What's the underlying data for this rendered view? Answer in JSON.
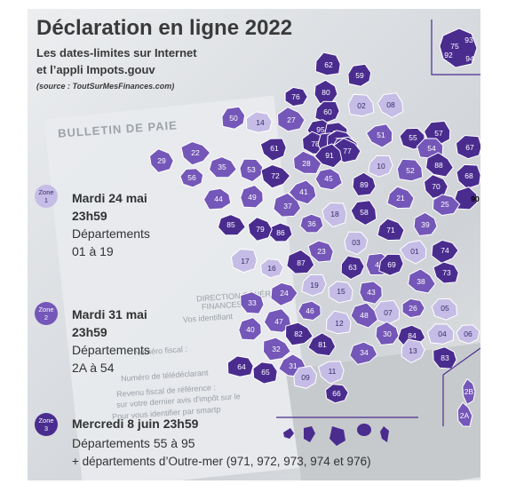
{
  "title": "Déclaration en ligne 2022",
  "subtitle_line1": "Les dates-limites sur Internet",
  "subtitle_line2": "et l’appli Impots.gouv",
  "source": "(source : ToutSurMesFinances.com)",
  "background_texts": {
    "bulletin": "BULLETIN DE PAIE",
    "direction": "DIRECTION GÉNÉRALE",
    "finances": "FINANCES",
    "vos_ident": "Vos identifiant",
    "num_fiscal": "Numéro fiscal :",
    "num_teledecl": "Numéro de télédéclarant",
    "revenu_ref": "Revenu fiscal de référence :",
    "dernier_avis": "sur votre dernier avis d'impôt sur le",
    "vous_identifier": "Pour vous identifier par smartp"
  },
  "colors": {
    "zone1": "#c6bde6",
    "zone2": "#7457b8",
    "zone3": "#4a2c8f",
    "border": "#ffffff"
  },
  "zones": [
    {
      "badge_word": "Zone",
      "badge_num": "1",
      "date": "Mardi 24 mai",
      "time": "23h59",
      "line1": "Départements",
      "line2": "01 à 19"
    },
    {
      "badge_word": "Zone",
      "badge_num": "2",
      "date": "Mardi 31 mai",
      "time": "23h59",
      "line1": "Départements",
      "line2": "2A à 54"
    },
    {
      "badge_word": "Zone",
      "badge_num": "3",
      "date": "Mercredi 8 juin 23h59",
      "line1": "Départements 55 à 95",
      "line2": "+ départements d’Outre-mer (971, 972, 973, 974 et 976)"
    }
  ],
  "departments": [
    {
      "code": "62",
      "zone": 3
    },
    {
      "code": "59",
      "zone": 3
    },
    {
      "code": "80",
      "zone": 3
    },
    {
      "code": "76",
      "zone": 3
    },
    {
      "code": "60",
      "zone": 3
    },
    {
      "code": "02",
      "zone": 1
    },
    {
      "code": "08",
      "zone": 1
    },
    {
      "code": "50",
      "zone": 2
    },
    {
      "code": "14",
      "zone": 1
    },
    {
      "code": "27",
      "zone": 2
    },
    {
      "code": "95",
      "zone": 3
    },
    {
      "code": "78",
      "zone": 3
    },
    {
      "code": "93",
      "zone": 3
    },
    {
      "code": "92",
      "zone": 3
    },
    {
      "code": "75",
      "zone": 3
    },
    {
      "code": "94",
      "zone": 3
    },
    {
      "code": "77",
      "zone": 3
    },
    {
      "code": "91",
      "zone": 3
    },
    {
      "code": "51",
      "zone": 2
    },
    {
      "code": "55",
      "zone": 3
    },
    {
      "code": "57",
      "zone": 3
    },
    {
      "code": "67",
      "zone": 3
    },
    {
      "code": "54",
      "zone": 2
    },
    {
      "code": "29",
      "zone": 2
    },
    {
      "code": "22",
      "zone": 2
    },
    {
      "code": "35",
      "zone": 2
    },
    {
      "code": "61",
      "zone": 3
    },
    {
      "code": "53",
      "zone": 2
    },
    {
      "code": "72",
      "zone": 3
    },
    {
      "code": "28",
      "zone": 2
    },
    {
      "code": "45",
      "zone": 2
    },
    {
      "code": "10",
      "zone": 1
    },
    {
      "code": "52",
      "zone": 2
    },
    {
      "code": "88",
      "zone": 3
    },
    {
      "code": "68",
      "zone": 3
    },
    {
      "code": "56",
      "zone": 2
    },
    {
      "code": "44",
      "zone": 2
    },
    {
      "code": "49",
      "zone": 2
    },
    {
      "code": "37",
      "zone": 2
    },
    {
      "code": "41",
      "zone": 2
    },
    {
      "code": "89",
      "zone": 3
    },
    {
      "code": "21",
      "zone": 2
    },
    {
      "code": "70",
      "zone": 3
    },
    {
      "code": "90",
      "zone": 3
    },
    {
      "code": "25",
      "zone": 2
    },
    {
      "code": "58",
      "zone": 3
    },
    {
      "code": "18",
      "zone": 1
    },
    {
      "code": "36",
      "zone": 2
    },
    {
      "code": "86",
      "zone": 3
    },
    {
      "code": "79",
      "zone": 3
    },
    {
      "code": "85",
      "zone": 3
    },
    {
      "code": "71",
      "zone": 3
    },
    {
      "code": "39",
      "zone": 2
    },
    {
      "code": "03",
      "zone": 1
    },
    {
      "code": "01",
      "zone": 1
    },
    {
      "code": "74",
      "zone": 3
    },
    {
      "code": "17",
      "zone": 1
    },
    {
      "code": "16",
      "zone": 1
    },
    {
      "code": "87",
      "zone": 3
    },
    {
      "code": "23",
      "zone": 2
    },
    {
      "code": "63",
      "zone": 3
    },
    {
      "code": "42",
      "zone": 2
    },
    {
      "code": "69",
      "zone": 3
    },
    {
      "code": "73",
      "zone": 3
    },
    {
      "code": "38",
      "zone": 2
    },
    {
      "code": "24",
      "zone": 2
    },
    {
      "code": "19",
      "zone": 1
    },
    {
      "code": "15",
      "zone": 1
    },
    {
      "code": "43",
      "zone": 2
    },
    {
      "code": "33",
      "zone": 2
    },
    {
      "code": "46",
      "zone": 2
    },
    {
      "code": "07",
      "zone": 1
    },
    {
      "code": "26",
      "zone": 2
    },
    {
      "code": "05",
      "zone": 1
    },
    {
      "code": "47",
      "zone": 2
    },
    {
      "code": "12",
      "zone": 1
    },
    {
      "code": "48",
      "zone": 2
    },
    {
      "code": "40",
      "zone": 2
    },
    {
      "code": "82",
      "zone": 3
    },
    {
      "code": "30",
      "zone": 2
    },
    {
      "code": "84",
      "zone": 3
    },
    {
      "code": "04",
      "zone": 1
    },
    {
      "code": "06",
      "zone": 1
    },
    {
      "code": "32",
      "zone": 2
    },
    {
      "code": "81",
      "zone": 3
    },
    {
      "code": "13",
      "zone": 1
    },
    {
      "code": "83",
      "zone": 3
    },
    {
      "code": "31",
      "zone": 2
    },
    {
      "code": "34",
      "zone": 2
    },
    {
      "code": "64",
      "zone": 3
    },
    {
      "code": "65",
      "zone": 3
    },
    {
      "code": "09",
      "zone": 1
    },
    {
      "code": "11",
      "zone": 1
    },
    {
      "code": "66",
      "zone": 3
    },
    {
      "code": "2B",
      "zone": 2
    },
    {
      "code": "2A",
      "zone": 2
    }
  ]
}
